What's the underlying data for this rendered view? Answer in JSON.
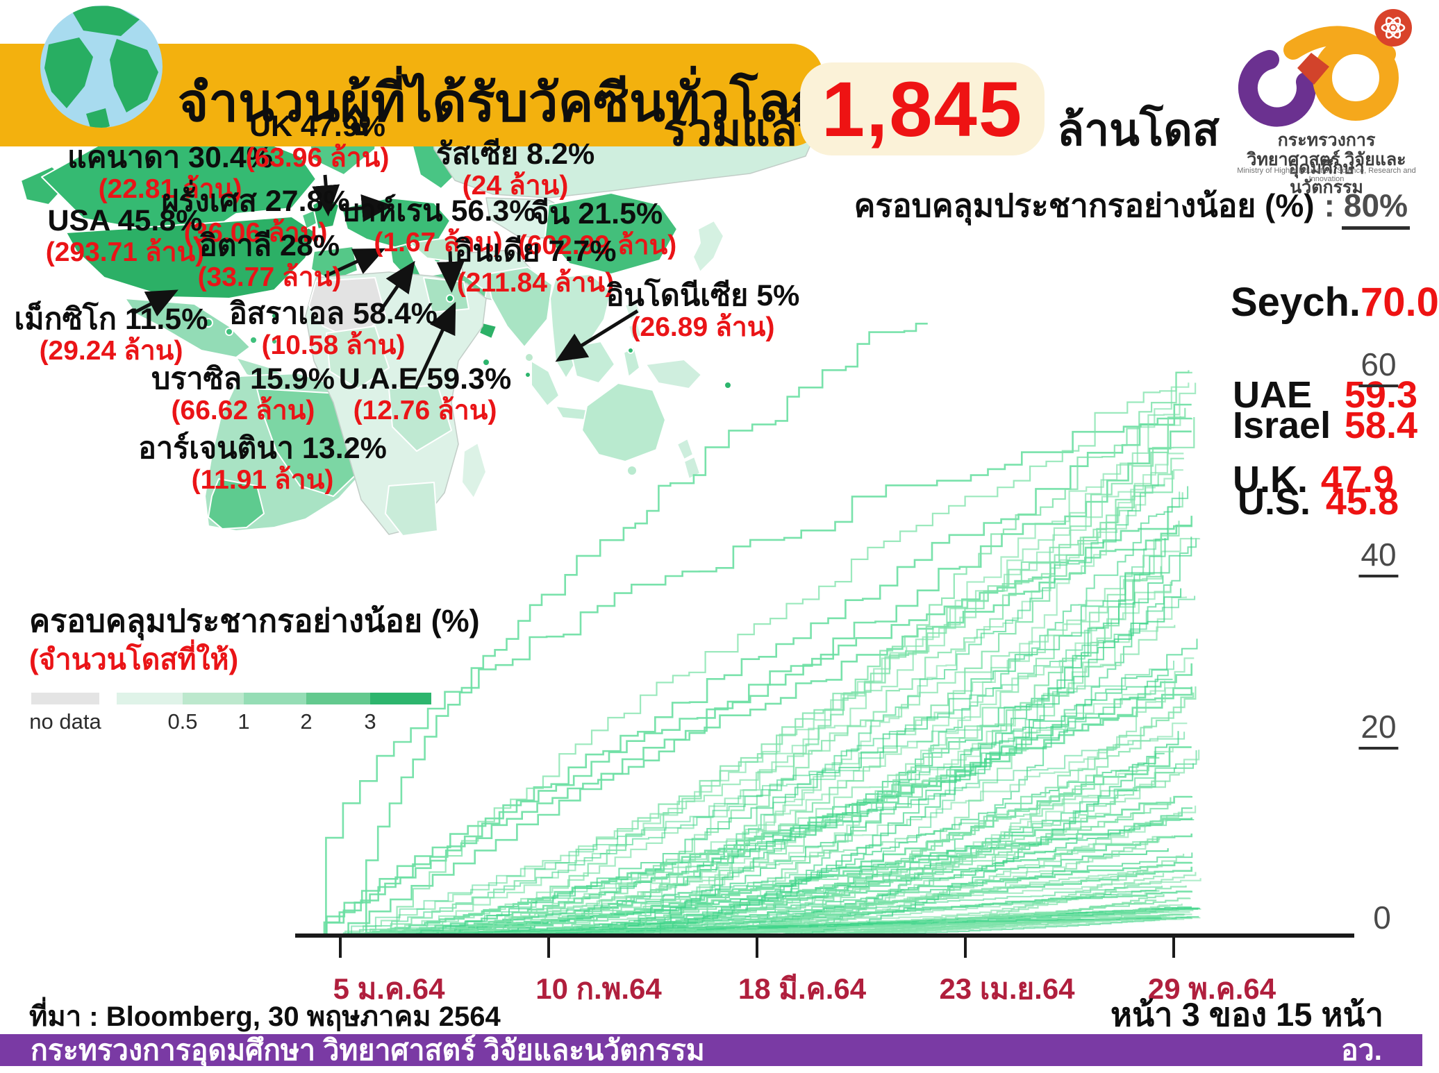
{
  "header": {
    "title": "จำนวนผู้ที่ได้รับวัคซีนทั่วโลก"
  },
  "total": {
    "prefix": "รวมแล้ว",
    "value": "1,845",
    "suffix": "ล้านโดส"
  },
  "logo": {
    "line1": "กระทรวงการอุดมศึกษา",
    "line2": "วิทยาศาสตร์ วิจัยและนวัตกรรม",
    "line3": "Ministry of Higher Education, Science, Research and Innovation"
  },
  "coverage_heading": {
    "label": "ครอบคลุมประชากรอย่างน้อย (%)",
    "separator": ":",
    "value": "80%"
  },
  "map": {
    "countries": [
      {
        "id": "canada",
        "label": "แคนาดา 30.4%",
        "value": "(22.81 ล้าน)"
      },
      {
        "id": "uk",
        "label": "UK 47.9%",
        "value": "(63.96 ล้าน)"
      },
      {
        "id": "france",
        "label": "ฝรั่งเศส 27.8%",
        "value": "(36.06 ล้าน)"
      },
      {
        "id": "usa",
        "label": "USA 45.8%",
        "value": "(293.71 ล้าน)"
      },
      {
        "id": "italy",
        "label": "อิตาลี 28%",
        "value": "(33.77 ล้าน)"
      },
      {
        "id": "russia",
        "label": "รัสเซีย 8.2%",
        "value": "(24 ล้าน)"
      },
      {
        "id": "bahrain",
        "label": "บาห์เรน 56.3%",
        "value": "(1.67 ล้าน)"
      },
      {
        "id": "china",
        "label": "จีน 21.5%",
        "value": "(602.99 ล้าน)"
      },
      {
        "id": "india",
        "label": "อินเดีย 7.7%",
        "value": "(211.84 ล้าน)"
      },
      {
        "id": "mexico",
        "label": "เม็กซิโก 11.5%",
        "value": "(29.24 ล้าน)"
      },
      {
        "id": "israel",
        "label": "อิสราเอล 58.4%",
        "value": "(10.58 ล้าน)"
      },
      {
        "id": "indonesia",
        "label": "อินโดนีเซีย 5%",
        "value": "(26.89 ล้าน)"
      },
      {
        "id": "brazil",
        "label": "บราซิล 15.9%",
        "value": "(66.62 ล้าน)"
      },
      {
        "id": "uae",
        "label": "U.A.E 59.3%",
        "value": "(12.76 ล้าน)"
      },
      {
        "id": "argentina",
        "label": "อาร์เจนตินา 13.2%",
        "value": "(11.91 ล้าน)"
      }
    ]
  },
  "legend": {
    "title": "ครอบคลุมประชากรอย่างน้อย (%)",
    "subtitle": "(จำนวนโดสที่ให้)",
    "no_data_label": "no data",
    "tick_labels": [
      "0.5",
      "1",
      "2",
      "3"
    ],
    "colors": [
      "#E4E4E4",
      "#DFF3E8",
      "#BCE8CD",
      "#95DDB5",
      "#63C98E",
      "#2DB56D"
    ]
  },
  "axis": {
    "y_labels": [
      "80%",
      "60",
      "40",
      "20",
      "0"
    ],
    "x_labels": [
      "5 ม.ค.64",
      "10 ก.พ.64",
      "18 มี.ค.64",
      "23 เม.ย.64",
      "29 พ.ค.64"
    ]
  },
  "annotations": [
    {
      "name": "Seych.",
      "value": "70.0"
    },
    {
      "name": "UAE",
      "value": "59.3"
    },
    {
      "name": "Israel",
      "value": "58.4"
    },
    {
      "name": "U.K.",
      "value": "47.9"
    },
    {
      "name": "U.S.",
      "value": "45.8"
    }
  ],
  "chart_data": {
    "type": "line",
    "title": "ครอบคลุมประชากรอย่างน้อย (%)",
    "subtitle": "(จำนวนโดสที่ให้)",
    "x_tick_labels": [
      "5 ม.ค.64",
      "10 ก.พ.64",
      "18 มี.ค.64",
      "23 เม.ย.64",
      "29 พ.ค.64"
    ],
    "ylim": [
      0,
      80
    ],
    "y_ticks": [
      0,
      20,
      40,
      60,
      80
    ],
    "grid": false,
    "legend_position": "none",
    "line_style": "step",
    "series": [
      {
        "name": "Seychelles",
        "final_pct": 70.0,
        "start_t": 0.05,
        "end_t": 0.68,
        "profile": 0.55
      },
      {
        "name": "UAE",
        "final_pct": 59.3,
        "start_t": 0.0,
        "end_t": 0.97,
        "profile": 0.95
      },
      {
        "name": "Israel",
        "final_pct": 58.4,
        "start_t": 0.0,
        "end_t": 0.97,
        "profile": 0.42
      },
      {
        "name": "Bahrain",
        "final_pct": 56.3,
        "start_t": 0.02,
        "end_t": 0.97,
        "profile": 1.0
      },
      {
        "name": "U.K.",
        "final_pct": 47.9,
        "start_t": 0.0,
        "end_t": 0.97,
        "profile": 0.8
      },
      {
        "name": "U.S.",
        "final_pct": 45.8,
        "start_t": 0.0,
        "end_t": 0.97,
        "profile": 0.85
      },
      {
        "name": "Canada",
        "final_pct": 30.4,
        "start_t": 0.02,
        "end_t": 0.97,
        "profile": 1.6
      },
      {
        "name": "Italy",
        "final_pct": 28.0,
        "start_t": 0.03,
        "end_t": 0.97,
        "profile": 1.3
      },
      {
        "name": "France",
        "final_pct": 27.8,
        "start_t": 0.03,
        "end_t": 0.97,
        "profile": 1.3
      },
      {
        "name": "China",
        "final_pct": 21.5,
        "start_t": 0.05,
        "end_t": 0.97,
        "profile": 1.9
      },
      {
        "name": "Brazil",
        "final_pct": 15.9,
        "start_t": 0.09,
        "end_t": 0.97,
        "profile": 1.4
      },
      {
        "name": "Argentina",
        "final_pct": 13.2,
        "start_t": 0.04,
        "end_t": 0.97,
        "profile": 1.2
      },
      {
        "name": "Mexico",
        "final_pct": 11.5,
        "start_t": 0.05,
        "end_t": 0.97,
        "profile": 1.3
      },
      {
        "name": "Russia",
        "final_pct": 8.2,
        "start_t": 0.03,
        "end_t": 0.97,
        "profile": 1.1
      },
      {
        "name": "India",
        "final_pct": 7.7,
        "start_t": 0.08,
        "end_t": 0.97,
        "profile": 1.5
      },
      {
        "name": "Indonesia",
        "final_pct": 5.0,
        "start_t": 0.1,
        "end_t": 0.97,
        "profile": 1.2
      }
    ],
    "background_series": {
      "count": 95,
      "final_pct_range": [
        2,
        64
      ]
    },
    "line_color": "#7DE2A9",
    "line_color_dark": "#3ED489"
  },
  "source": "ที่มา : Bloomberg, 30 พฤษภาคม 2564",
  "page_indicator": "หน้า 3 ของ 15 หน้า",
  "footer": {
    "text": "กระทรวงการอุดมศึกษา วิทยาศาสตร์ วิจัยและนวัตกรรม",
    "right": "อว."
  },
  "colors": {
    "band": "#F3B10E",
    "cream": "#FBF2D8",
    "red": "#EE1313",
    "x_label": "#B01F3D",
    "footer": "#7A3AA4",
    "axis": "#1a1a1a",
    "y_label": "#4a4a4a"
  }
}
